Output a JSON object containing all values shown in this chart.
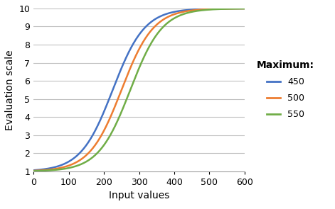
{
  "title": "",
  "xlabel": "Input values",
  "ylabel": "Evaluation scale",
  "xlim": [
    0,
    600
  ],
  "ylim": [
    1,
    10
  ],
  "xticks": [
    0,
    100,
    200,
    300,
    400,
    500,
    600
  ],
  "yticks": [
    1,
    2,
    3,
    4,
    5,
    6,
    7,
    8,
    9,
    10
  ],
  "legend_title": "Maximum:",
  "series": [
    {
      "label": "450",
      "color": "#4472C4",
      "maximum": 450,
      "k": 0.022
    },
    {
      "label": "500",
      "color": "#ED7D31",
      "maximum": 500,
      "k": 0.022
    },
    {
      "label": "550",
      "color": "#70AD47",
      "maximum": 550,
      "k": 0.022
    }
  ],
  "y_min": 1,
  "y_max": 10,
  "x_min": 0,
  "x_max": 600,
  "background_color": "#FFFFFF",
  "grid_color": "#C0C0C0"
}
